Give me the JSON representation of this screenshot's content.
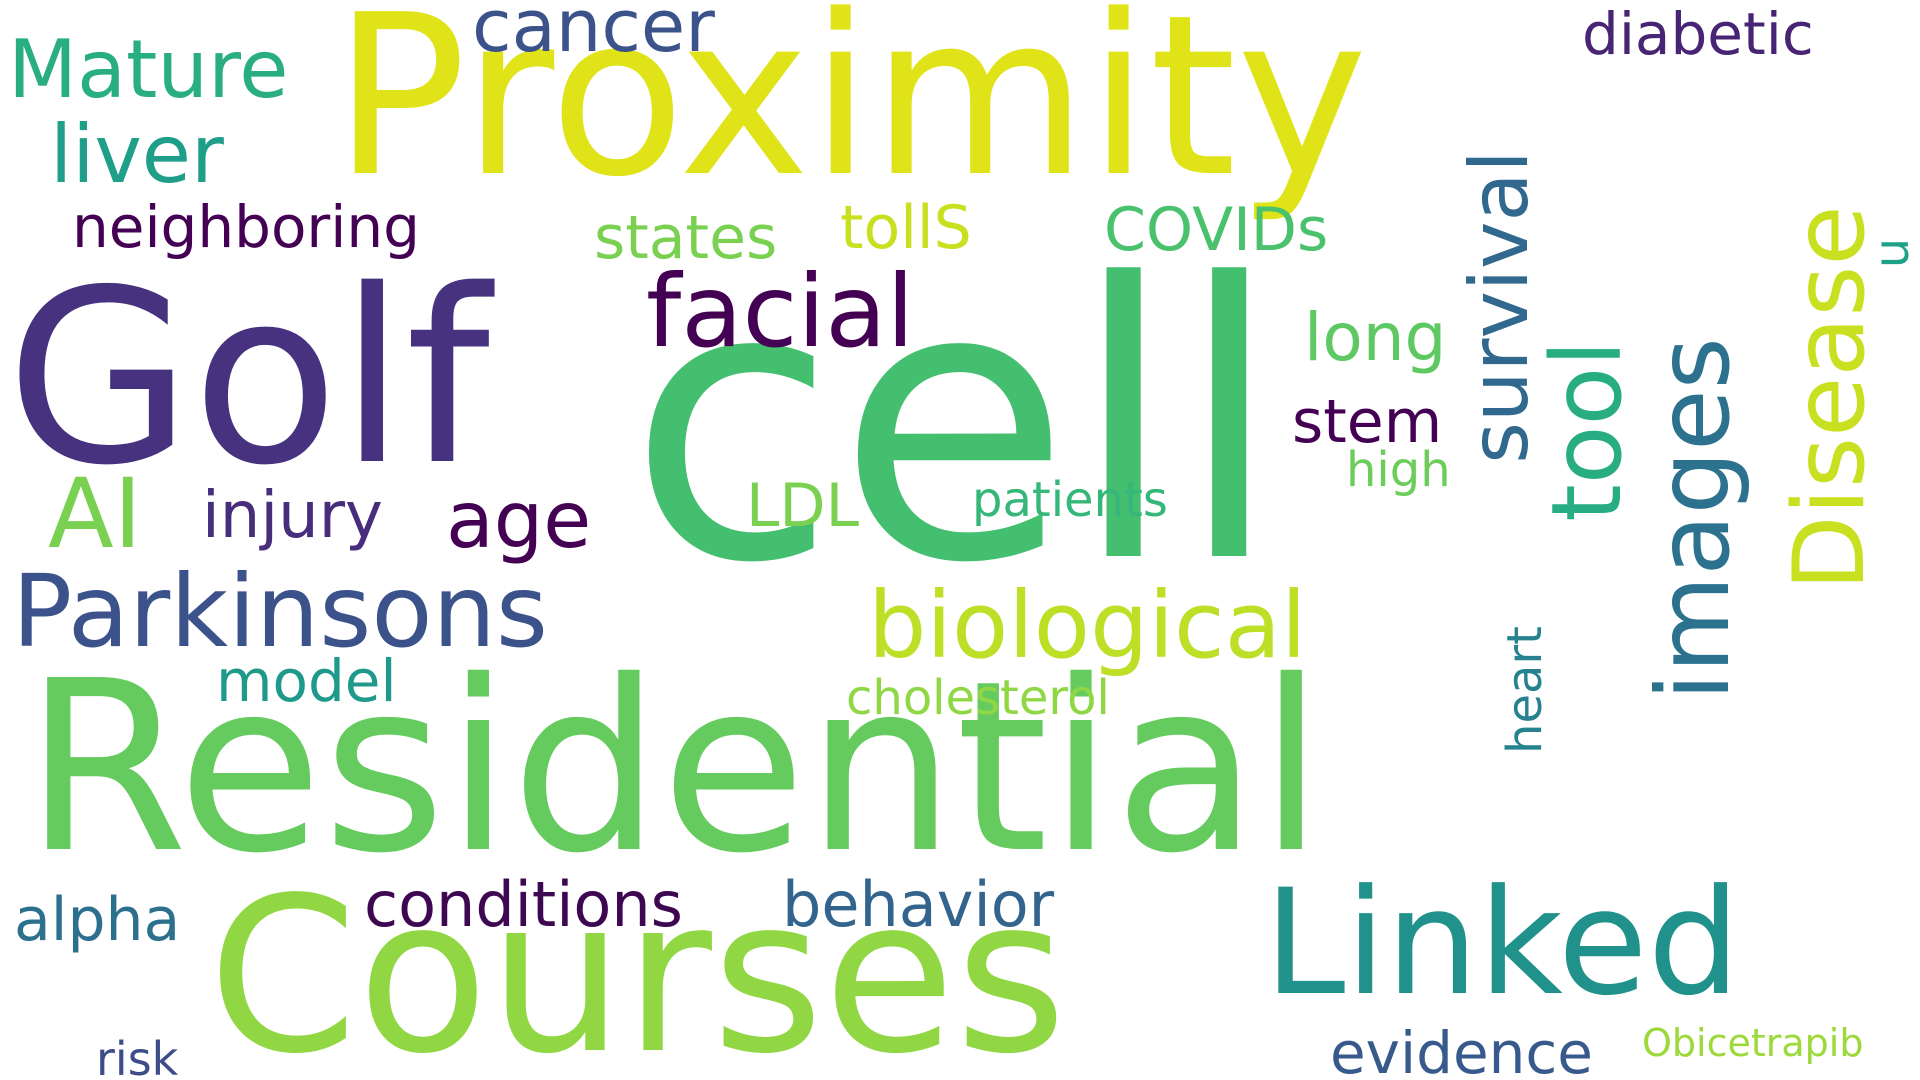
{
  "words": [
    {
      "key": "proximity",
      "text": "Proximity",
      "color": "#dfe318"
    },
    {
      "key": "cell",
      "text": "cell",
      "color": "#44bf70"
    },
    {
      "key": "golf",
      "text": "Golf",
      "color": "#46327e"
    },
    {
      "key": "residential",
      "text": "Residential",
      "color": "#65cb5e"
    },
    {
      "key": "courses",
      "text": "Courses",
      "color": "#90d743"
    },
    {
      "key": "linked",
      "text": "Linked",
      "color": "#21918c"
    },
    {
      "key": "cancer",
      "text": "cancer",
      "color": "#3b528b"
    },
    {
      "key": "mature",
      "text": "Mature",
      "color": "#28ae80"
    },
    {
      "key": "liver",
      "text": "liver",
      "color": "#1f9e89"
    },
    {
      "key": "diabetic",
      "text": "diabetic",
      "color": "#482475"
    },
    {
      "key": "neighboring",
      "text": "neighboring",
      "color": "#440154"
    },
    {
      "key": "facial",
      "text": "facial",
      "color": "#440154"
    },
    {
      "key": "states",
      "text": "states",
      "color": "#7ad151"
    },
    {
      "key": "tolls",
      "text": "tollS",
      "color": "#c8e020"
    },
    {
      "key": "covids",
      "text": "COVIDs",
      "color": "#4ac16d"
    },
    {
      "key": "survival",
      "text": "survival",
      "color": "#31688e"
    },
    {
      "key": "disease",
      "text": "Disease",
      "color": "#c8e020"
    },
    {
      "key": "u",
      "text": "u",
      "color": "#1fa088"
    },
    {
      "key": "tool",
      "text": "tool",
      "color": "#27ad81"
    },
    {
      "key": "images",
      "text": "images",
      "color": "#2c728e"
    },
    {
      "key": "long",
      "text": "long",
      "color": "#5ec962"
    },
    {
      "key": "stem",
      "text": "stem",
      "color": "#440154"
    },
    {
      "key": "high",
      "text": "high",
      "color": "#6ccd5a"
    },
    {
      "key": "ai",
      "text": "AI",
      "color": "#7ad151"
    },
    {
      "key": "injury",
      "text": "injury",
      "color": "#472d7b"
    },
    {
      "key": "age",
      "text": "age",
      "color": "#440154"
    },
    {
      "key": "parkinsons",
      "text": "Parkinsons",
      "color": "#3b528b"
    },
    {
      "key": "ldl",
      "text": "LDL",
      "color": "#7ad151"
    },
    {
      "key": "patients",
      "text": "patients",
      "color": "#35b779"
    },
    {
      "key": "biological",
      "text": "biological",
      "color": "#bddf26"
    },
    {
      "key": "model",
      "text": "model",
      "color": "#1f9a8a"
    },
    {
      "key": "cholesterol",
      "text": "cholesterol",
      "color": "#8fd744"
    },
    {
      "key": "heart",
      "text": "heart",
      "color": "#26828e"
    },
    {
      "key": "alpha",
      "text": "alpha",
      "color": "#2d708e"
    },
    {
      "key": "conditions",
      "text": "conditions",
      "color": "#3e0751"
    },
    {
      "key": "behavior",
      "text": "behavior",
      "color": "#32648e"
    },
    {
      "key": "evidence",
      "text": "evidence",
      "color": "#38598c"
    },
    {
      "key": "risk",
      "text": "risk",
      "color": "#3e4c8a"
    },
    {
      "key": "obicetrapib",
      "text": "Obicetrapib",
      "color": "#9dd93b"
    }
  ]
}
